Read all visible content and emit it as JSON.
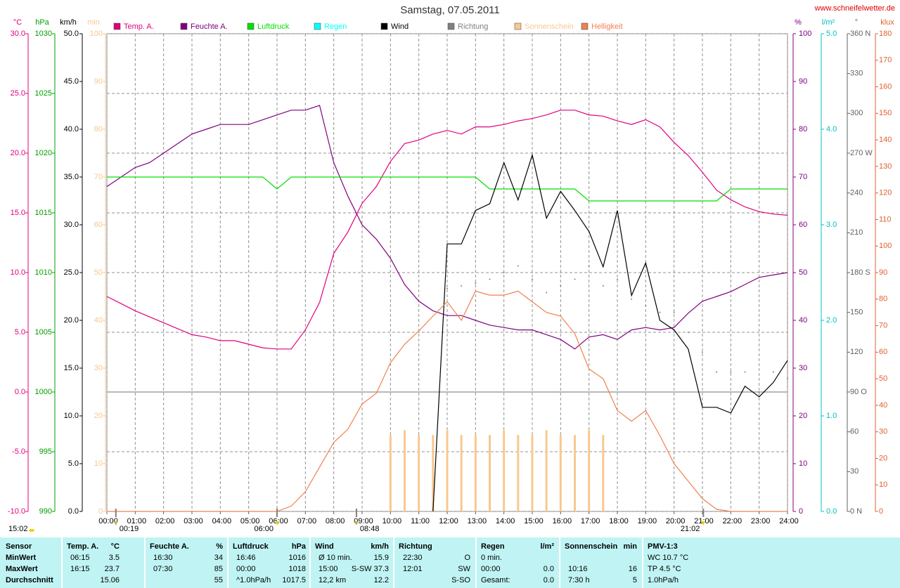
{
  "chart_data": {
    "type": "line",
    "title": "Samstag, 07.05.2011",
    "source": "www.schneifelwetter.de",
    "timestamp": "15:02",
    "annotations": [
      "00:19",
      "06:00",
      "08:48",
      "21:02"
    ],
    "grid": true,
    "grid_axis": "°C",
    "xlim": [
      0,
      24
    ],
    "xticks": [
      {
        "value": 0,
        "label": "00:00"
      },
      {
        "value": 1,
        "label": "01:00"
      },
      {
        "value": 2,
        "label": "02:00"
      },
      {
        "value": 3,
        "label": "03:00"
      },
      {
        "value": 4,
        "label": "04:00"
      },
      {
        "value": 5,
        "label": "05:00"
      },
      {
        "value": 6,
        "label": "06:00"
      },
      {
        "value": 7,
        "label": "07:00"
      },
      {
        "value": 8,
        "label": "08:00"
      },
      {
        "value": 9,
        "label": "09:00"
      },
      {
        "value": 10,
        "label": "10:00"
      },
      {
        "value": 11,
        "label": "11:00"
      },
      {
        "value": 12,
        "label": "12:00"
      },
      {
        "value": 13,
        "label": "13:00"
      },
      {
        "value": 14,
        "label": "14:00"
      },
      {
        "value": 15,
        "label": "15:00"
      },
      {
        "value": 16,
        "label": "16:00"
      },
      {
        "value": 17,
        "label": "17:00"
      },
      {
        "value": 18,
        "label": "18:00"
      },
      {
        "value": 19,
        "label": "19:00"
      },
      {
        "value": 20,
        "label": "20:00"
      },
      {
        "value": 21,
        "label": "21:00"
      },
      {
        "value": 22,
        "label": "22:00"
      },
      {
        "value": 23,
        "label": "23:00"
      },
      {
        "value": 24,
        "label": "24:00"
      }
    ],
    "axes": [
      {
        "unit": "°C",
        "side": "left",
        "color": "#e0007f",
        "lim": [
          -10,
          30
        ],
        "ticks": [
          {
            "value": -10,
            "label": "-10.0"
          },
          {
            "value": -5,
            "label": "-5.0"
          },
          {
            "value": 0,
            "label": "0.0"
          },
          {
            "value": 5,
            "label": "5.0"
          },
          {
            "value": 10,
            "label": "10.0"
          },
          {
            "value": 15,
            "label": "15.0"
          },
          {
            "value": 20,
            "label": "20.0"
          },
          {
            "value": 25,
            "label": "25.0"
          },
          {
            "value": 30,
            "label": "30.0"
          }
        ]
      },
      {
        "unit": "hPa",
        "side": "left",
        "color": "#00a000",
        "lim": [
          990,
          1030
        ],
        "ticks": [
          990,
          995,
          1000,
          1005,
          1010,
          1015,
          1020,
          1025,
          1030
        ]
      },
      {
        "unit": "km/h",
        "side": "left",
        "color": "#000000",
        "lim": [
          0,
          50
        ],
        "ticks": [
          {
            "value": 0,
            "label": "0.0"
          },
          {
            "value": 5,
            "label": "5.0"
          },
          {
            "value": 10,
            "label": "10.0"
          },
          {
            "value": 15,
            "label": "15.0"
          },
          {
            "value": 20,
            "label": "20.0"
          },
          {
            "value": 25,
            "label": "25.0"
          },
          {
            "value": 30,
            "label": "30.0"
          },
          {
            "value": 35,
            "label": "35.0"
          },
          {
            "value": 40,
            "label": "40.0"
          },
          {
            "value": 45,
            "label": "45.0"
          },
          {
            "value": 50,
            "label": "50.0"
          }
        ]
      },
      {
        "unit": "min",
        "side": "left",
        "color": "#f5c890",
        "lim": [
          0,
          100
        ],
        "ticks": [
          0,
          10,
          20,
          30,
          40,
          50,
          60,
          70,
          80,
          90,
          100
        ]
      },
      {
        "unit": "%",
        "side": "right",
        "color": "#800080",
        "lim": [
          0,
          100
        ],
        "ticks": [
          0,
          10,
          20,
          30,
          40,
          50,
          60,
          70,
          80,
          90,
          100
        ]
      },
      {
        "unit": "l/m²",
        "side": "right",
        "color": "#00c0c0",
        "lim": [
          0,
          5
        ],
        "ticks": [
          {
            "value": 0,
            "label": "0.0"
          },
          {
            "value": 1,
            "label": "1.0"
          },
          {
            "value": 2,
            "label": "2.0"
          },
          {
            "value": 3,
            "label": "3.0"
          },
          {
            "value": 4,
            "label": "4.0"
          },
          {
            "value": 5,
            "label": "5.0"
          }
        ]
      },
      {
        "unit": "°",
        "side": "right",
        "color": "#606060",
        "lim": [
          0,
          360
        ],
        "ticks": [
          {
            "value": 0,
            "label": "0 N"
          },
          30,
          60,
          {
            "value": 90,
            "label": "90 O"
          },
          120,
          150,
          {
            "value": 180,
            "label": "180 S"
          },
          210,
          240,
          {
            "value": 270,
            "label": "270 W"
          },
          300,
          330,
          {
            "value": 360,
            "label": "360 N"
          }
        ]
      },
      {
        "unit": "klux",
        "side": "right",
        "color": "#e06030",
        "lim": [
          0,
          180
        ],
        "ticks": [
          0,
          10,
          20,
          30,
          40,
          50,
          60,
          70,
          80,
          90,
          100,
          110,
          120,
          130,
          140,
          150,
          160,
          170,
          180
        ]
      }
    ],
    "x": [
      0,
      0.5,
      1,
      1.5,
      2,
      2.5,
      3,
      3.5,
      4,
      4.5,
      5,
      5.5,
      6,
      6.5,
      7,
      7.5,
      8,
      8.5,
      9,
      9.5,
      10,
      10.5,
      11,
      11.5,
      12,
      12.5,
      13,
      13.5,
      14,
      14.5,
      15,
      15.5,
      16,
      16.5,
      17,
      17.5,
      18,
      18.5,
      19,
      19.5,
      20,
      20.5,
      21,
      21.5,
      22,
      22.5,
      23,
      23.5,
      24
    ],
    "series": [
      {
        "name": "Temp. A.",
        "color": "#e0007f",
        "axis": "°C",
        "style": "line",
        "values": [
          8.0,
          7.4,
          6.8,
          6.3,
          5.8,
          5.3,
          4.8,
          4.6,
          4.3,
          4.3,
          4.0,
          3.7,
          3.6,
          3.6,
          5.2,
          7.5,
          11.6,
          13.4,
          15.8,
          17.2,
          19.3,
          20.8,
          21.1,
          21.6,
          21.9,
          21.6,
          22.2,
          22.2,
          22.4,
          22.7,
          22.9,
          23.2,
          23.6,
          23.6,
          23.2,
          23.1,
          22.7,
          22.4,
          22.8,
          22.2,
          20.9,
          19.8,
          18.4,
          16.9,
          16.1,
          15.5,
          15.1,
          14.9,
          14.8
        ]
      },
      {
        "name": "Feuchte A.",
        "color": "#800080",
        "axis": "%",
        "style": "line",
        "values": [
          68,
          70,
          72,
          73,
          75,
          77,
          79,
          80,
          81,
          81,
          81,
          82,
          83,
          84,
          84,
          85,
          73,
          66,
          60,
          57,
          53,
          47.5,
          44,
          42,
          41,
          41,
          40,
          39,
          38.5,
          38,
          38,
          37,
          36,
          34,
          36.5,
          37,
          36,
          38,
          38.5,
          38,
          38.5,
          41.5,
          44,
          45,
          46,
          47.5,
          49,
          49.5,
          50
        ]
      },
      {
        "name": "Luftdruck",
        "color": "#00e000",
        "axis": "hPa",
        "style": "line",
        "values": [
          1018,
          1018,
          1018,
          1018,
          1018,
          1018,
          1018,
          1018,
          1018,
          1018,
          1018,
          1018,
          1017,
          1018,
          1018,
          1018,
          1018,
          1018,
          1018,
          1018,
          1018,
          1018,
          1018,
          1018,
          1018,
          1018,
          1018,
          1017,
          1017,
          1017,
          1017,
          1017,
          1017,
          1017,
          1016,
          1016,
          1016,
          1016,
          1016,
          1016,
          1016,
          1016,
          1016,
          1016,
          1017,
          1017,
          1017,
          1017,
          1017
        ]
      },
      {
        "name": "Regen",
        "color": "#00ffff",
        "axis": "l/m²",
        "style": "bar",
        "values": [
          0,
          0,
          0,
          0,
          0,
          0,
          0,
          0,
          0,
          0,
          0,
          0,
          0,
          0,
          0,
          0,
          0,
          0,
          0,
          0,
          0,
          0,
          0,
          0,
          0,
          0,
          0,
          0,
          0,
          0,
          0,
          0,
          0,
          0,
          0,
          0,
          0,
          0,
          0,
          0,
          0,
          0,
          0,
          0,
          0,
          0,
          0,
          0,
          0
        ]
      },
      {
        "name": "Wind",
        "color": "#000000",
        "axis": "km/h",
        "style": "line",
        "values": [
          null,
          null,
          null,
          null,
          null,
          null,
          null,
          null,
          null,
          null,
          null,
          null,
          null,
          null,
          null,
          null,
          null,
          null,
          null,
          null,
          null,
          null,
          null,
          0,
          28,
          28,
          31.5,
          32.2,
          36.5,
          32.6,
          37.3,
          30.7,
          33.5,
          31.5,
          29.3,
          25.6,
          31.5,
          22.6,
          26,
          20,
          19,
          17,
          10.9,
          10.9,
          10.3,
          13.1,
          12,
          13.5,
          15.8
        ]
      },
      {
        "name": "Richtung",
        "color": "#808080",
        "axis": "°",
        "style": "dots",
        "values": [
          null,
          null,
          null,
          null,
          null,
          null,
          null,
          null,
          null,
          null,
          null,
          null,
          null,
          null,
          null,
          null,
          null,
          null,
          null,
          null,
          null,
          null,
          null,
          null,
          168,
          170,
          172,
          175,
          180,
          185,
          175,
          165,
          170,
          175,
          185,
          170,
          175,
          160,
          155,
          150,
          150,
          135,
          120,
          105,
          105,
          105,
          90,
          105,
          100
        ]
      },
      {
        "name": "Sonnenschein",
        "color": "#f8c890",
        "axis": "min",
        "style": "bar",
        "values": [
          0,
          0,
          0,
          0,
          0,
          0,
          0,
          0,
          0,
          0,
          0,
          0,
          0,
          0,
          0,
          0,
          0,
          0,
          0,
          0,
          16,
          17,
          16,
          16,
          17,
          16,
          16,
          16,
          17,
          16,
          16,
          17,
          16,
          16,
          17,
          16,
          0,
          0,
          0,
          0,
          0,
          0,
          0,
          0,
          0,
          0,
          0,
          0,
          0
        ]
      },
      {
        "name": "Helligkeit",
        "color": "#f08050",
        "axis": "klux",
        "style": "line",
        "values": [
          0,
          0,
          0,
          0,
          0,
          0,
          0,
          0,
          0,
          0,
          0,
          0,
          0,
          2,
          7.4,
          16.7,
          26,
          31,
          40.5,
          44.5,
          56,
          63,
          68,
          73.6,
          79,
          72,
          83,
          81.5,
          81.5,
          83,
          79,
          75,
          73.6,
          67,
          53.7,
          50,
          38,
          34,
          38,
          28.6,
          18,
          11.4,
          4.8,
          0.8,
          0,
          0,
          0,
          0,
          0
        ]
      }
    ]
  },
  "table": {
    "header": "Sensor",
    "row_labels": [
      "MinWert",
      "MaxWert",
      "Durchschnitt"
    ],
    "groups": [
      {
        "name": "Temp. A.",
        "unit": "°C",
        "rows": [
          {
            "left": "06:15",
            "right": "3.5"
          },
          {
            "left": "16:15",
            "right": "23.7"
          },
          {
            "right": "15.06"
          }
        ]
      },
      {
        "name": "Feuchte A.",
        "unit": "%",
        "rows": [
          {
            "left": "16:30",
            "right": "34"
          },
          {
            "left": "07:30",
            "right": "85"
          },
          {
            "right": "55"
          }
        ]
      },
      {
        "name": "Luftdruck",
        "unit": "hPa",
        "rows": [
          {
            "left": "16:46",
            "right": "1016"
          },
          {
            "left": "00:00",
            "right": "1018"
          },
          {
            "left": "^1.0hPa/h",
            "right": "1017.5"
          }
        ]
      },
      {
        "name": "Wind",
        "unit": "km/h",
        "rows": [
          {
            "left": "Ø 10 min.",
            "right": "15.9"
          },
          {
            "left": "15:00",
            "right": "S-SW 37.3"
          },
          {
            "left": "12,2 km",
            "right": "12.2"
          }
        ]
      },
      {
        "name": "Richtung",
        "rows": [
          {
            "left": "22:30",
            "right": "O"
          },
          {
            "left": "12:01",
            "right": "SW"
          },
          {
            "right": "S-SO"
          }
        ]
      },
      {
        "name": "Regen",
        "unit": "l/m²",
        "rows": [
          {
            "left": "0 min."
          },
          {
            "left": "00:00",
            "right": "0.0"
          },
          {
            "left": "Gesamt:",
            "right": "0.0"
          }
        ]
      },
      {
        "name": "Sonnenschein",
        "unit": "min",
        "rows": [
          null,
          {
            "left": "10:16",
            "right": "16"
          },
          {
            "left": "7:30 h",
            "right": "5"
          }
        ]
      },
      {
        "name": "PMV-1:3",
        "rows": [
          {
            "left": "WC 10.7 °C"
          },
          {
            "left": "TP 4.5 °C"
          },
          {
            "left": "1.0hPa/h"
          }
        ]
      }
    ]
  }
}
